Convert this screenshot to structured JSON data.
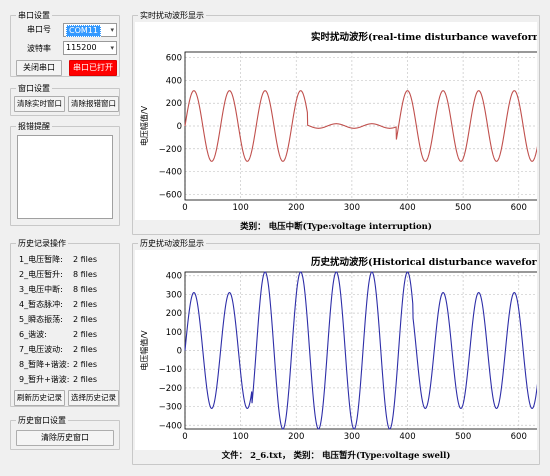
{
  "serial": {
    "group_title": "串口设置",
    "port_label": "串口号",
    "port_value": "COM11",
    "baud_label": "波特率",
    "baud_value": "115200",
    "close_button": "关闭串口",
    "status_button": "串口已打开"
  },
  "window": {
    "group_title": "窗口设置",
    "clear_realtime": "清除实时窗口",
    "clear_alarm": "清除报错窗口"
  },
  "alarm": {
    "group_title": "报错提醒"
  },
  "history": {
    "group_title": "历史记录操作",
    "items": [
      {
        "label": "1_电压暂降:",
        "count": "2 files"
      },
      {
        "label": "2_电压暂升:",
        "count": "8 files"
      },
      {
        "label": "3_电压中断:",
        "count": "8 files"
      },
      {
        "label": "4_暂态脉冲:",
        "count": "2 files"
      },
      {
        "label": "5_瞬态振荡:",
        "count": "2 files"
      },
      {
        "label": "6_谐波:",
        "count": "2 files"
      },
      {
        "label": "7_电压波动:",
        "count": "2 files"
      },
      {
        "label": "8_暂降+谐波:",
        "count": "2 files"
      },
      {
        "label": "9_暂升+谐波:",
        "count": "2 files"
      }
    ],
    "refresh_button": "刷新历史记录",
    "select_button": "选择历史记录"
  },
  "history_window": {
    "group_title": "历史窗口设置",
    "clear_button": "清除历史窗口"
  },
  "realtime_panel": {
    "group_title": "实时扰动波形显示",
    "caption": "类别： 电压中断(Type:voltage interruption)"
  },
  "history_panel": {
    "group_title": "历史扰动波形显示",
    "caption": "文件： 2_6.txt， 类别： 电压暂升(Type:voltage swell)"
  },
  "colors": {
    "realtime_line": "#c0504d",
    "history_line": "#2e2ea8",
    "status_red": "#ff0000"
  },
  "chart_data": [
    {
      "type": "line",
      "title": "实时扰动波形(real-time disturbance waveform display)",
      "ylabel": "电压幅值/V",
      "xlim": [
        0,
        640
      ],
      "ylim": [
        -650,
        650
      ],
      "xticks": [
        0,
        100,
        200,
        300,
        400,
        500,
        600
      ],
      "yticks": [
        -600,
        -400,
        -200,
        0,
        200,
        400,
        600
      ],
      "grid": true,
      "series": [
        {
          "description": "sine wave, amplitude ~310 V, period ~64 samples, interruption between x≈220 and x≈380 with amplitude ~20 V",
          "amplitude": 310,
          "period": 64,
          "interruption": [
            220,
            380
          ],
          "interruption_amplitude": 20
        }
      ]
    },
    {
      "type": "line",
      "title": "历史扰动波形(Historical disturbance waveform dispaly)",
      "ylabel": "电压幅值/V",
      "xlim": [
        0,
        640
      ],
      "ylim": [
        -420,
        420
      ],
      "xticks": [
        0,
        100,
        200,
        300,
        400,
        500,
        600
      ],
      "yticks": [
        -400,
        -300,
        -200,
        -100,
        0,
        100,
        200,
        300,
        400
      ],
      "grid": true,
      "series": [
        {
          "description": "sine wave, amplitude ~310 V, period ~64 samples, swell to ~420 V between x≈120 and x≈410",
          "amplitude": 310,
          "period": 64,
          "swell": [
            120,
            410
          ],
          "swell_amplitude": 420
        }
      ]
    }
  ]
}
